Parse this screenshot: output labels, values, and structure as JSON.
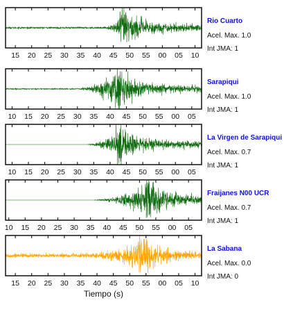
{
  "colors": {
    "trace": "#0f6b0f",
    "trace_alt": "#ffa500",
    "station_label": "#1010e0",
    "frame": "#000000"
  },
  "labels": {
    "peak_prefix": "Acel. Max. ",
    "intensity_prefix": "Int JMA: "
  },
  "chart_data": [
    {
      "type": "line",
      "station": "Rio Cuarto",
      "peak_acceleration": "1.0",
      "jma_intensity": "1",
      "trace_color": "#0f6b0f",
      "x_ticks": [
        "15",
        "20",
        "25",
        "30",
        "35",
        "40",
        "45",
        "50",
        "55",
        "00",
        "05",
        "10"
      ],
      "x_range_seconds": [
        12,
        72
      ],
      "arrival_seconds": 43,
      "peak_seconds": 48,
      "y_range": [
        -1.0,
        1.0
      ],
      "relative_amplitude": 1.0,
      "pre_event_noise": 0.05
    },
    {
      "type": "line",
      "station": "Sarapiqui",
      "peak_acceleration": "1.0",
      "jma_intensity": "1",
      "trace_color": "#0f6b0f",
      "x_ticks": [
        "10",
        "15",
        "20",
        "25",
        "30",
        "35",
        "40",
        "45",
        "50",
        "55",
        "00",
        "05"
      ],
      "x_range_seconds": [
        8,
        68
      ],
      "arrival_seconds": 30,
      "peak_seconds": 42,
      "y_range": [
        -1.0,
        1.0
      ],
      "relative_amplitude": 1.0,
      "pre_event_noise": 0.03
    },
    {
      "type": "line",
      "station": "La Virgen de Sarapiqui",
      "peak_acceleration": "0.7",
      "jma_intensity": "1",
      "trace_color": "#0f6b0f",
      "x_ticks": [
        "10",
        "15",
        "20",
        "25",
        "30",
        "35",
        "40",
        "45",
        "50",
        "55",
        "00",
        "05"
      ],
      "x_range_seconds": [
        8,
        68
      ],
      "arrival_seconds": 33,
      "peak_seconds": 43,
      "y_range": [
        -1.0,
        1.0
      ],
      "relative_amplitude": 0.95,
      "pre_event_noise": 0.0
    },
    {
      "type": "line",
      "station": "Fraijanes N00 UCR",
      "peak_acceleration": "0.7",
      "jma_intensity": "1",
      "trace_color": "#0f6b0f",
      "x_ticks": [
        "10",
        "15",
        "20",
        "25",
        "30",
        "35",
        "40",
        "45",
        "50",
        "55",
        "00",
        "05"
      ],
      "x_range_seconds": [
        9,
        69
      ],
      "arrival_seconds": 36,
      "peak_seconds": 53,
      "y_range": [
        -1.0,
        1.0
      ],
      "relative_amplitude": 1.0,
      "pre_event_noise": 0.0
    },
    {
      "type": "line",
      "station": "La Sabana",
      "peak_acceleration": "0.0",
      "jma_intensity": "0",
      "trace_color": "#ffa500",
      "x_ticks": [
        "15",
        "20",
        "25",
        "30",
        "35",
        "40",
        "45",
        "50",
        "55",
        "00",
        "05",
        "10"
      ],
      "x_range_seconds": [
        12,
        72
      ],
      "arrival_seconds": 36,
      "peak_seconds": 54,
      "y_range": [
        -1.0,
        1.0
      ],
      "relative_amplitude": 0.95,
      "pre_event_noise": 0.12,
      "x_label": "Tiempo (s)"
    }
  ]
}
